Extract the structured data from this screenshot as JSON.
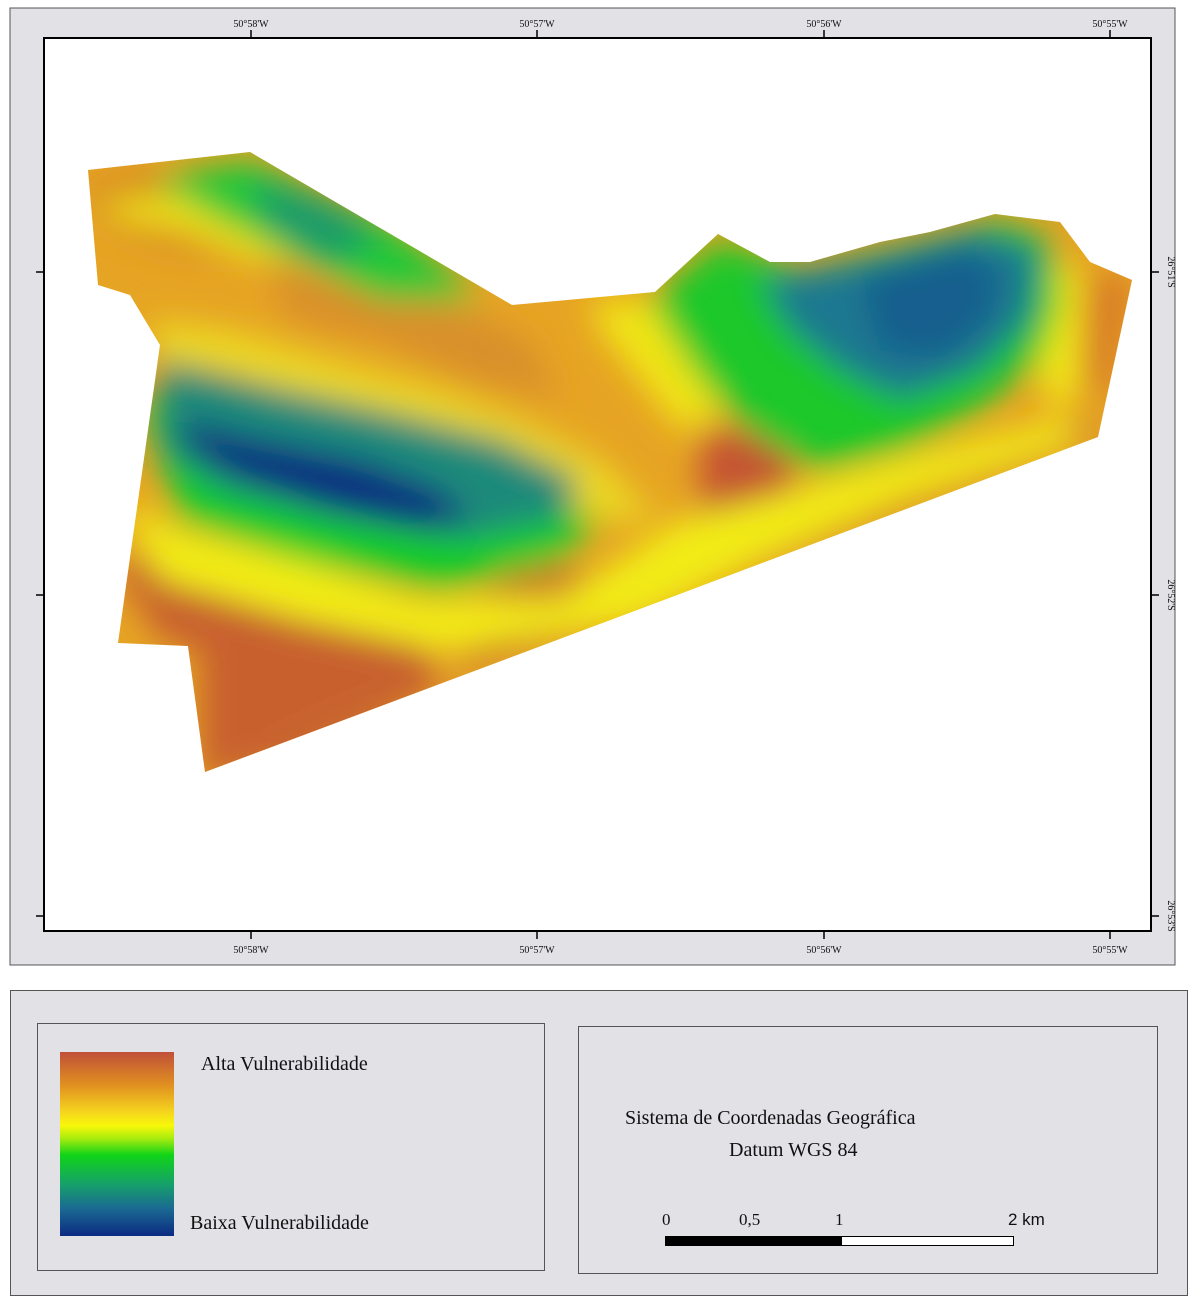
{
  "map": {
    "longitude_labels": [
      "50°58'W",
      "50°57'W",
      "50°56'W",
      "50°55'W"
    ],
    "latitude_labels": [
      "26°51'S",
      "26°52'S",
      "26°53'S"
    ],
    "colors": {
      "high": "#c0503a",
      "orange": "#e09020",
      "yellow": "#f8f80a",
      "green": "#10d418",
      "teal": "#1a6a92",
      "low": "#0c2a82",
      "frame_background": "#e1e1e6"
    }
  },
  "legend": {
    "high_label": "Alta Vulnerabilidade",
    "low_label": "Baixa Vulnerabilidade"
  },
  "info": {
    "coordinate_system": "Sistema de Coordenadas Geográfica",
    "datum": "Datum WGS 84"
  },
  "scale_bar": {
    "labels": [
      "0",
      "0,5",
      "1",
      "2 km"
    ]
  }
}
